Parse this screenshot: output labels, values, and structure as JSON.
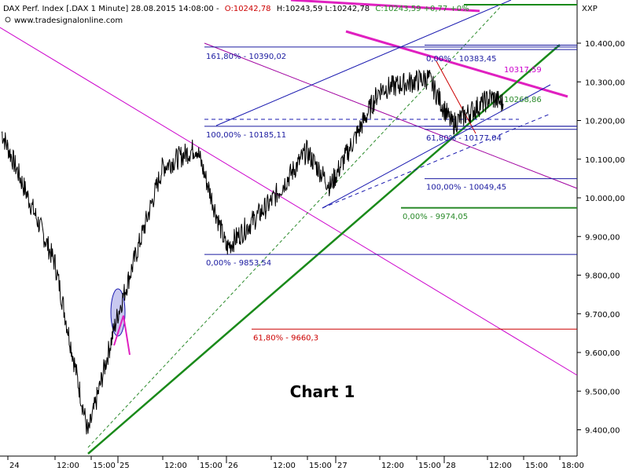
{
  "header": {
    "instrument": "DAX Perf. Index [.DAX  1 Minute] 28.08.2015 14:08:00 -",
    "open_label": "O:10242,78",
    "hlc_label": "H:10243,59 L:10242,78",
    "change_label": "C:10243,59 +0,77 +0%",
    "website": "www.tradesignalonline.com",
    "symbol": "XXP"
  },
  "chart_data": {
    "type": "line",
    "title": "Chart 1",
    "xlabel": "",
    "ylabel": "",
    "ylim": [
      9320,
      10480
    ],
    "yticks": [
      "10.400,00",
      "10.300,00",
      "10.200,00",
      "10.100,00",
      "10.000,00",
      "9.900,00",
      "9.800,00",
      "9.700,00",
      "9.600,00",
      "9.500,00",
      "9.400,00"
    ],
    "ytick_values": [
      10400,
      10300,
      10200,
      10100,
      10000,
      9900,
      9800,
      9700,
      9600,
      9500,
      9400
    ],
    "xticks": [
      "24",
      "12:00",
      "15:00",
      "25",
      "12:00",
      "15:00",
      "26",
      "12:00",
      "15:00",
      "27",
      "12:00",
      "15:00",
      "28",
      "12:00",
      "15:00",
      "18:00"
    ],
    "grid": false,
    "series": [
      {
        "color": "#000000",
        "x": [
          "24 09:00",
          "24 12:00",
          "24 15:00",
          "25 09:00",
          "25 12:00",
          "25 15:00",
          "26 09:00",
          "26 12:00",
          "26 15:00",
          "27 09:00",
          "27 12:00",
          "27 15:00",
          "28 09:00",
          "28 12:00",
          "28 14:08"
        ],
        "values": [
          10170,
          9830,
          9390,
          9700,
          10080,
          10130,
          9870,
          9990,
          10120,
          10030,
          10280,
          10310,
          10190,
          10260,
          10243
        ]
      }
    ],
    "fib_levels": [
      {
        "label": "161,80% - 10390,02",
        "value": 10390.02,
        "color": "#1a1aa0"
      },
      {
        "label": "100,00% - 10185,11",
        "value": 10185.11,
        "color": "#1a1aa0"
      },
      {
        "label": "0,00% - 9853,54",
        "value": 9853.54,
        "color": "#1a1aa0"
      },
      {
        "label": "0,00% - 10383,45",
        "value": 10383.45,
        "color": "#1a1aa0"
      },
      {
        "label": "61,80% - 10177,04",
        "value": 10177.04,
        "color": "#1a1aa0"
      },
      {
        "label": "100,00% - 10049,45",
        "value": 10049.45,
        "color": "#1a1aa0"
      },
      {
        "label": "0,00% - 9974,05",
        "value": 9974.05,
        "color": "#2a8a2a"
      },
      {
        "label": "61,80% - 9660,3",
        "value": 9660.3,
        "color": "#cc0000"
      }
    ],
    "annotations": [
      {
        "label": "10317,59",
        "value": 10317.59,
        "color": "#cc00cc"
      },
      {
        "label": "10268,86",
        "value": 10268.86,
        "color": "#2a8a2a"
      }
    ]
  }
}
